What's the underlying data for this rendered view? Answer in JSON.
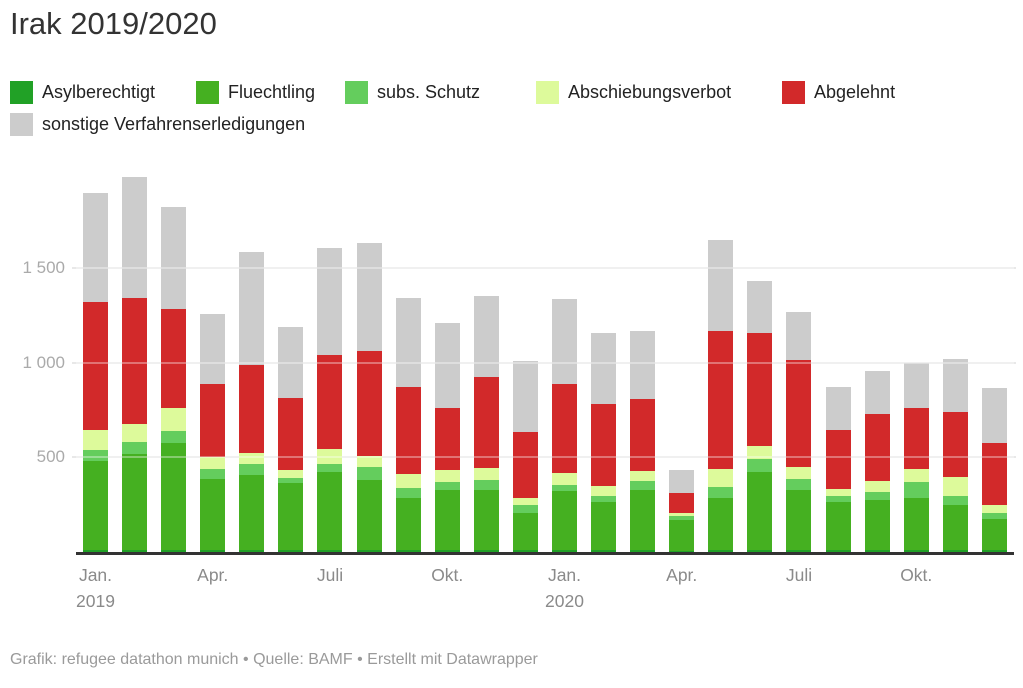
{
  "header": {
    "title": "Irak 2019/2020"
  },
  "legend": {
    "items": [
      {
        "label": "Asylberechtigt",
        "color": "#21a126"
      },
      {
        "label": "Fluechtling",
        "color": "#45b021"
      },
      {
        "label": "subs. Schutz",
        "color": "#64cd5d"
      },
      {
        "label": "Abschiebungsverbot",
        "color": "#ddfa9b"
      },
      {
        "label": "Abgelehnt",
        "color": "#d2292a"
      },
      {
        "label": "sonstige Verfahrenserledigungen",
        "color": "#cccccc"
      }
    ]
  },
  "chart_data": {
    "type": "bar",
    "stacked": true,
    "title": "Irak 2019/2020",
    "xlabel": "",
    "ylabel": "",
    "ylim": [
      0,
      2000
    ],
    "grid": "horizontal",
    "legend_position": "top",
    "grid_color": "#e8e8e8",
    "axis_color": "#333333",
    "categories": [
      "Jan. 2019",
      "Feb. 2019",
      "Mär. 2019",
      "Apr. 2019",
      "Mai 2019",
      "Jun. 2019",
      "Jul. 2019",
      "Aug. 2019",
      "Sep. 2019",
      "Okt. 2019",
      "Nov. 2019",
      "Dez. 2019",
      "Jan. 2020",
      "Feb. 2020",
      "Mär. 2020",
      "Apr. 2020",
      "Mai 2020",
      "Jun. 2020",
      "Jul. 2020",
      "Aug. 2020",
      "Sep. 2020",
      "Okt. 2020",
      "Nov. 2020",
      "Dez. 2020"
    ],
    "series": [
      {
        "name": "Asylberechtigt",
        "color": "#21a126",
        "values": [
          10,
          10,
          10,
          10,
          10,
          10,
          10,
          10,
          10,
          10,
          10,
          10,
          10,
          10,
          10,
          5,
          10,
          10,
          10,
          10,
          10,
          10,
          10,
          10
        ]
      },
      {
        "name": "Fluechtling",
        "color": "#45b021",
        "values": [
          470,
          510,
          565,
          375,
          395,
          355,
          415,
          370,
          275,
          315,
          315,
          195,
          310,
          255,
          320,
          165,
          275,
          410,
          320,
          255,
          265,
          275,
          240,
          165
        ]
      },
      {
        "name": "subs. Schutz",
        "color": "#64cd5d",
        "values": [
          60,
          60,
          65,
          55,
          60,
          25,
          40,
          70,
          55,
          45,
          55,
          45,
          35,
          30,
          45,
          18,
          60,
          70,
          55,
          30,
          40,
          85,
          45,
          30
        ]
      },
      {
        "name": "Abschiebungsverbot",
        "color": "#ddfa9b",
        "values": [
          105,
          95,
          120,
          60,
          60,
          45,
          80,
          55,
          70,
          65,
          65,
          35,
          60,
          55,
          55,
          18,
          95,
          70,
          65,
          40,
          60,
          70,
          100,
          45
        ]
      },
      {
        "name": "Abgelehnt",
        "color": "#d2292a",
        "values": [
          675,
          665,
          525,
          390,
          465,
          380,
          495,
          560,
          460,
          325,
          480,
          350,
          475,
          430,
          380,
          105,
          730,
          595,
          565,
          310,
          355,
          320,
          345,
          325
        ]
      },
      {
        "name": "sonstige Verfahrenserledigungen",
        "color": "#cccccc",
        "values": [
          580,
          640,
          540,
          370,
          595,
          375,
          565,
          570,
          475,
          450,
          430,
          375,
          445,
          375,
          360,
          120,
          480,
          275,
          255,
          225,
          225,
          240,
          280,
          290
        ]
      }
    ],
    "y_ticks": [
      {
        "value": 500,
        "label": "500"
      },
      {
        "value": 1000,
        "label": "1 000"
      },
      {
        "value": 1500,
        "label": "1 500"
      }
    ],
    "x_ticks": [
      {
        "index": 0,
        "label": "Jan.",
        "sublabel": "2019"
      },
      {
        "index": 3,
        "label": "Apr.",
        "sublabel": ""
      },
      {
        "index": 6,
        "label": "Juli",
        "sublabel": ""
      },
      {
        "index": 9,
        "label": "Okt.",
        "sublabel": ""
      },
      {
        "index": 12,
        "label": "Jan.",
        "sublabel": "2020"
      },
      {
        "index": 15,
        "label": "Apr.",
        "sublabel": ""
      },
      {
        "index": 18,
        "label": "Juli",
        "sublabel": ""
      },
      {
        "index": 21,
        "label": "Okt.",
        "sublabel": ""
      }
    ]
  },
  "footer": {
    "credit": "Grafik: refugee datathon munich • Quelle: BAMF • Erstellt mit Datawrapper"
  }
}
